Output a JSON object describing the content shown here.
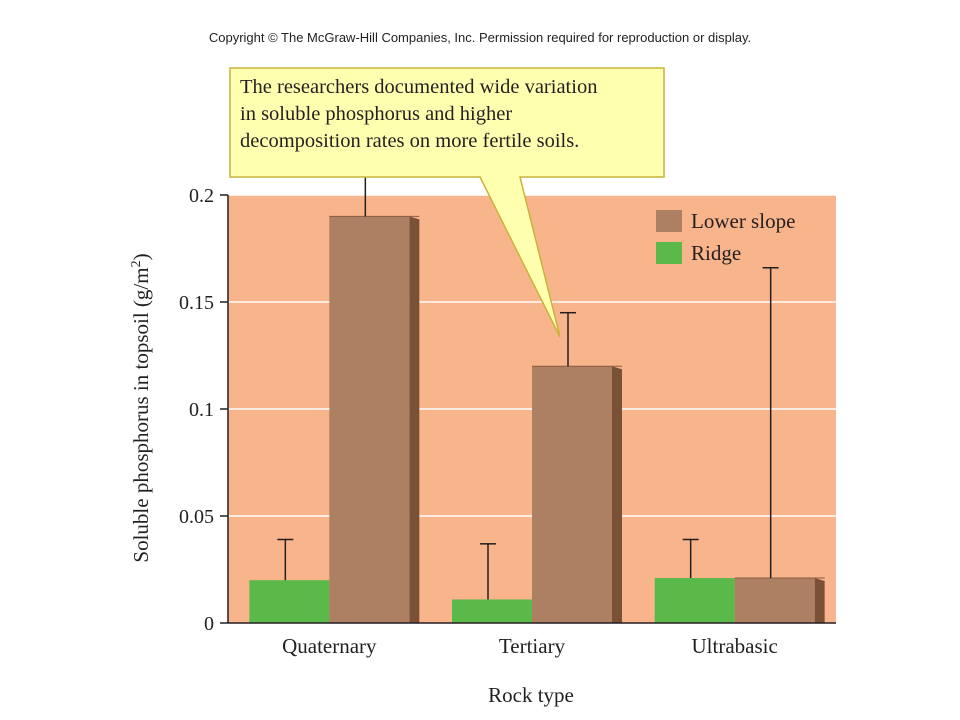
{
  "copyright": "Copyright © The McGraw-Hill Companies, Inc. Permission required for reproduction or display.",
  "callout": {
    "lines": [
      "The researchers documented wide variation",
      "in soluble phosphorus and higher",
      "decomposition rates on more fertile soils."
    ]
  },
  "colors": {
    "plot_background": "#f8b48a",
    "lower_slope": "#ad7f63",
    "lower_slope_side": "#7a5036",
    "ridge": "#5bb94a",
    "callout_fill": "#ffffb0",
    "callout_border": "#c9b23a"
  },
  "chart_data": {
    "type": "bar",
    "categories": [
      "Quaternary",
      "Tertiary",
      "Ultrabasic"
    ],
    "series": [
      {
        "name": "Ridge",
        "values": [
          0.02,
          0.011,
          0.021
        ],
        "error_top": [
          0.039,
          0.037,
          0.039
        ]
      },
      {
        "name": "Lower slope",
        "values": [
          0.19,
          0.12,
          0.021
        ],
        "error_top": [
          0.21,
          0.145,
          0.166
        ]
      }
    ],
    "ylim": [
      0,
      0.2
    ],
    "yticks": [
      0,
      0.05,
      0.1,
      0.15,
      0.2
    ],
    "ytick_labels": [
      "0",
      "0.05",
      "0.1",
      "0.15",
      "0.2"
    ],
    "ylabel": "Soluble phosphorus in topsoil (g/m",
    "ylabel_sup": "2",
    "ylabel_close": ")",
    "xlabel": "Rock type",
    "grid": true,
    "legend": [
      "Lower slope",
      "Ridge"
    ],
    "legend_position": "top-right"
  }
}
